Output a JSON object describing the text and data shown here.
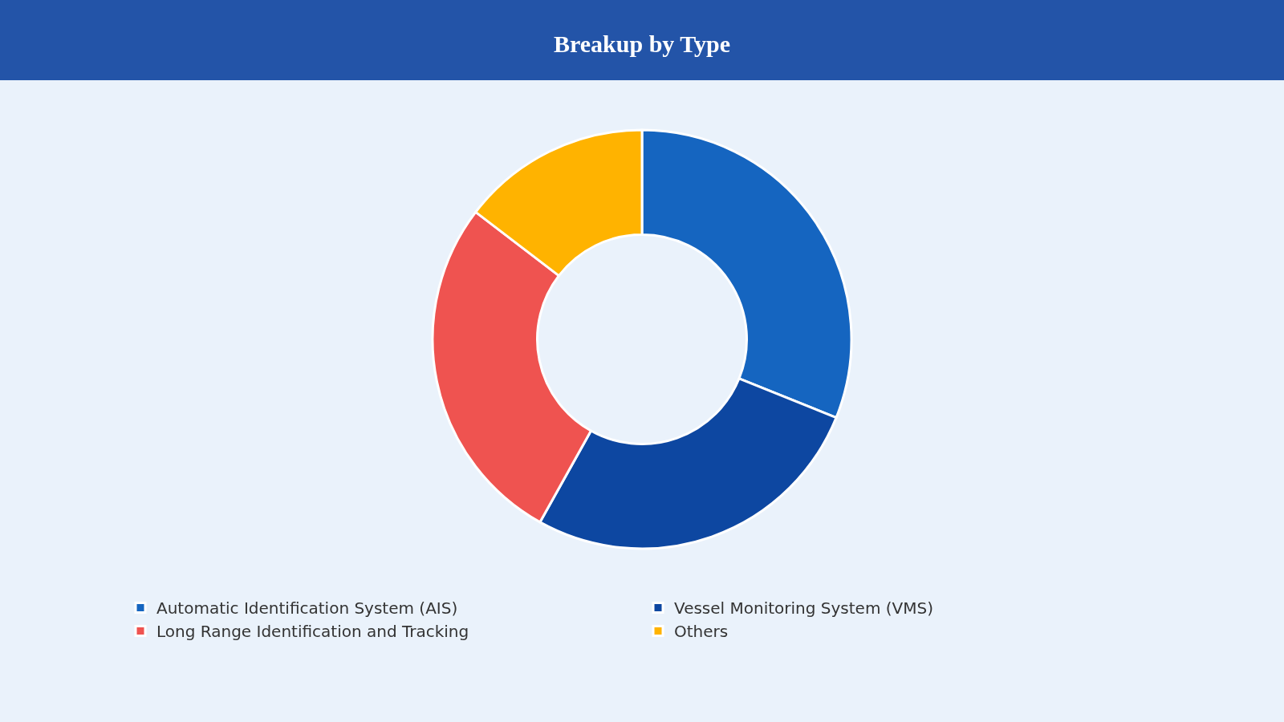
{
  "chart_data": {
    "type": "donut",
    "title": "Breakup by Type",
    "categories": [
      "Automatic Identification System (AIS)",
      "Vessel Monitoring System (VMS)",
      "Long Range Identification and Tracking",
      "Others"
    ],
    "values": [
      31.1,
      27.0,
      27.3,
      14.6
    ],
    "colors": [
      "#1565c0",
      "#0d47a1",
      "#ef5350",
      "#ffb300"
    ],
    "legend": "bottom"
  }
}
